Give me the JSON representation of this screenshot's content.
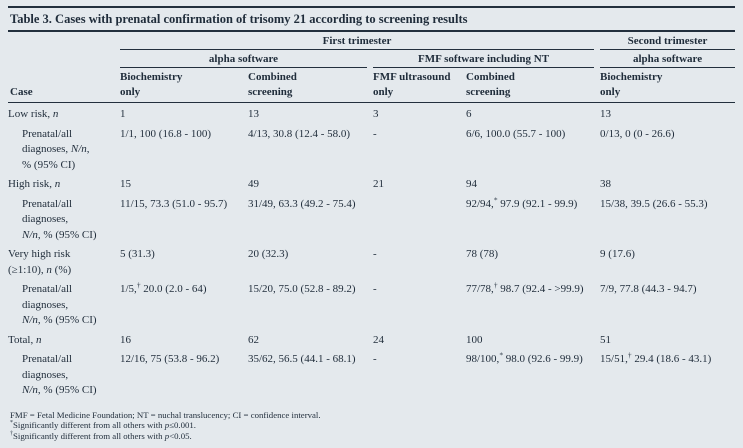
{
  "title": "Table 3. Cases with prenatal confirmation of trisomy 21 according to screening results",
  "header": {
    "group1": {
      "first": "First trimester",
      "second": "Second trimester"
    },
    "group2": {
      "alpha1": "alpha software",
      "fmf": "FMF software including NT",
      "alpha2": "alpha software"
    },
    "case_label": "Case",
    "columns": [
      "Biochemistry\nonly",
      "Combined\nscreening",
      "FMF ultrasound\nonly",
      "Combined\nscreening",
      "Biochemistry\nonly"
    ]
  },
  "rows": [
    {
      "label": "Low risk, *n*",
      "indent": false,
      "values": [
        "1",
        "13",
        "3",
        "6",
        "13"
      ]
    },
    {
      "label": "Prenatal/all\ndiagnoses, *N/n*,\n% (95% CI)",
      "indent": true,
      "values": [
        "1/1, 100 (16.8 - 100)",
        "4/13, 30.8 (12.4 - 58.0)",
        "-",
        "6/6, 100.0 (55.7 - 100)",
        "0/13, 0 (0 - 26.6)"
      ]
    },
    {
      "label": "High risk, *n*",
      "indent": false,
      "values": [
        "15",
        "49",
        "21",
        "94",
        "38"
      ]
    },
    {
      "label": "Prenatal/all\ndiagnoses,\n*N/n*, % (95% CI)",
      "indent": true,
      "values": [
        "11/15, 73.3 (51.0 - 95.7)",
        "31/49, 63.3 (49.2 - 75.4)",
        "",
        "92/94,^*^ 97.9 (92.1 - 99.9)",
        "15/38, 39.5 (26.6 - 55.3)"
      ]
    },
    {
      "label": "Very high risk\n(≥1:10), *n* (%)",
      "indent": false,
      "values": [
        "5 (31.3)",
        "20 (32.3)",
        "-",
        "78 (78)",
        "9 (17.6)"
      ]
    },
    {
      "label": "Prenatal/all\ndiagnoses,\n*N/n*, % (95% CI)",
      "indent": true,
      "values": [
        "1/5,^†^ 20.0 (2.0 - 64)",
        "15/20, 75.0 (52.8 - 89.2)",
        "-",
        "77/78,^†^ 98.7 (92.4 - >99.9)",
        "7/9, 77.8 (44.3 - 94.7)"
      ]
    },
    {
      "label": "Total, *n*",
      "indent": false,
      "values": [
        "16",
        "62",
        "24",
        "100",
        "51"
      ]
    },
    {
      "label": "Prenatal/all\ndiagnoses,\n*N/n*, % (95% CI)",
      "indent": true,
      "values": [
        "12/16, 75 (53.8 - 96.2)",
        "35/62, 56.5 (44.1 - 68.1)",
        "-",
        "98/100,^*^ 98.0 (92.6 - 99.9)",
        "15/51,^†^ 29.4 (18.6 - 43.1)"
      ]
    }
  ],
  "footnotes": {
    "abbreviations": "FMF = Fetal Medicine Foundation; NT = nuchal translucency; CI = confidence interval.",
    "note1": {
      "marker": "*",
      "text": "Significantly different from all others with *p*≤0.001."
    },
    "note2": {
      "marker": "†",
      "text": "Significantly different from all others with *p*<0.05."
    }
  },
  "colors": {
    "background": "#e4e9ed",
    "text": "#1f2c3a",
    "rule": "#222f3d"
  }
}
